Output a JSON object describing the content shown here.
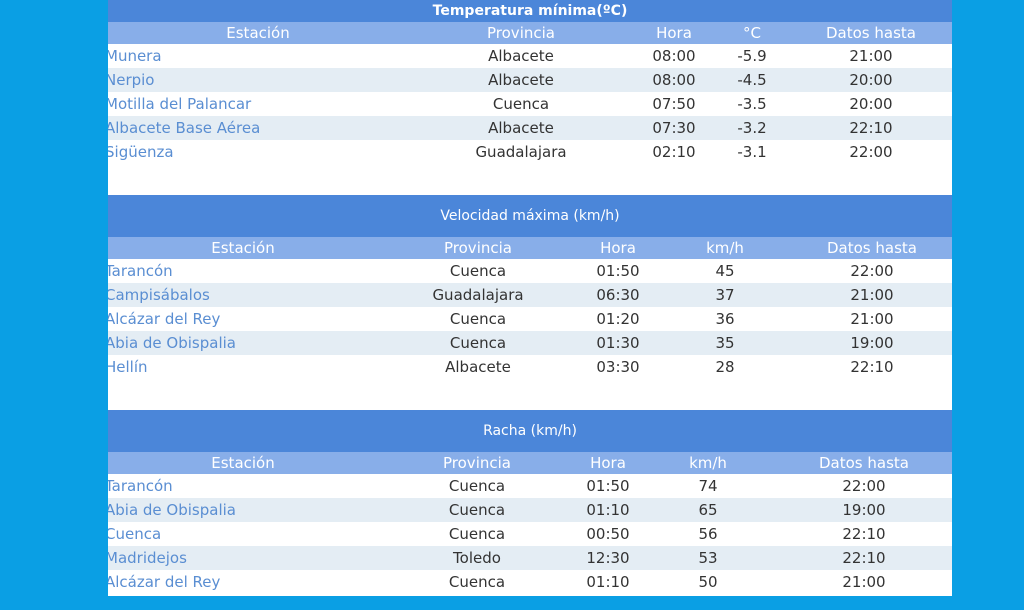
{
  "sections": [
    {
      "title": "Temperatura mínima(ºC)",
      "headers": [
        "Estación",
        "Provincia",
        "Hora",
        "°C",
        "Datos hasta"
      ],
      "rows": [
        [
          "Munera",
          "Albacete",
          "08:00",
          "-5.9",
          "21:00"
        ],
        [
          "Nerpio",
          "Albacete",
          "08:00",
          "-4.5",
          "20:00"
        ],
        [
          "Motilla del Palancar",
          "Cuenca",
          "07:50",
          "-3.5",
          "20:00"
        ],
        [
          "Albacete Base Aérea",
          "Albacete",
          "07:30",
          "-3.2",
          "22:10"
        ],
        [
          "Sigüenza",
          "Guadalajara",
          "02:10",
          "-3.1",
          "22:00"
        ]
      ]
    },
    {
      "title": "Velocidad máxima (km/h)",
      "headers": [
        "Estación",
        "Provincia",
        "Hora",
        "km/h",
        "Datos hasta"
      ],
      "rows": [
        [
          "Tarancón",
          "Cuenca",
          "01:50",
          "45",
          "22:00"
        ],
        [
          "Campisábalos",
          "Guadalajara",
          "06:30",
          "37",
          "21:00"
        ],
        [
          "Alcázar del Rey",
          "Cuenca",
          "01:20",
          "36",
          "21:00"
        ],
        [
          "Abia de Obispalia",
          "Cuenca",
          "01:30",
          "35",
          "19:00"
        ],
        [
          "Hellín",
          "Albacete",
          "03:30",
          "28",
          "22:10"
        ]
      ]
    },
    {
      "title": "Racha (km/h)",
      "headers": [
        "Estación",
        "Provincia",
        "Hora",
        "km/h",
        "Datos hasta"
      ],
      "rows": [
        [
          "Tarancón",
          "Cuenca",
          "01:50",
          "74",
          "22:00"
        ],
        [
          "Abia de Obispalia",
          "Cuenca",
          "01:10",
          "65",
          "19:00"
        ],
        [
          "Cuenca",
          "Cuenca",
          "00:50",
          "56",
          "22:10"
        ],
        [
          "Madridejos",
          "Toledo",
          "12:30",
          "53",
          "22:10"
        ],
        [
          "Alcázar del Rey",
          "Cuenca",
          "01:10",
          "50",
          "21:00"
        ]
      ]
    }
  ]
}
